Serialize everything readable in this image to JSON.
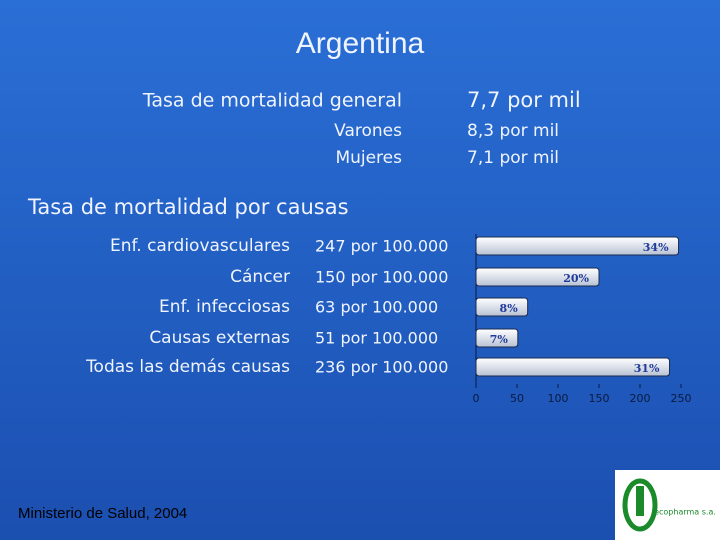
{
  "title": "Argentina",
  "general": {
    "label": "Tasa de mortalidad general",
    "value": "7,7 por mil",
    "rows": [
      {
        "label": "Varones",
        "value": "8,3 por mil"
      },
      {
        "label": "Mujeres",
        "value": "7,1 por mil"
      }
    ]
  },
  "causes_title": "Tasa de mortalidad por causas",
  "rate_labels": [
    "247 por 100.000",
    "150 por 100.000",
    "63 por 100.000",
    "51 por 100.000",
    "236 por 100.000"
  ],
  "source": "Ministerio de Salud, 2004",
  "logo_text": "ecopharma s.a.",
  "chart_data": {
    "type": "hbar",
    "categories": [
      "Enf. cardiovasculares",
      "Cáncer",
      "Enf. infecciosas",
      "Causas externas",
      "Todas las demás causas"
    ],
    "values": [
      247,
      150,
      63,
      51,
      236
    ],
    "share_labels": [
      "34%",
      "20%",
      "8%",
      "7%",
      "31%"
    ],
    "color": "#e8ecf4",
    "xlim": [
      0,
      250
    ],
    "xticks": [
      0,
      50,
      100,
      150,
      200,
      250
    ]
  }
}
